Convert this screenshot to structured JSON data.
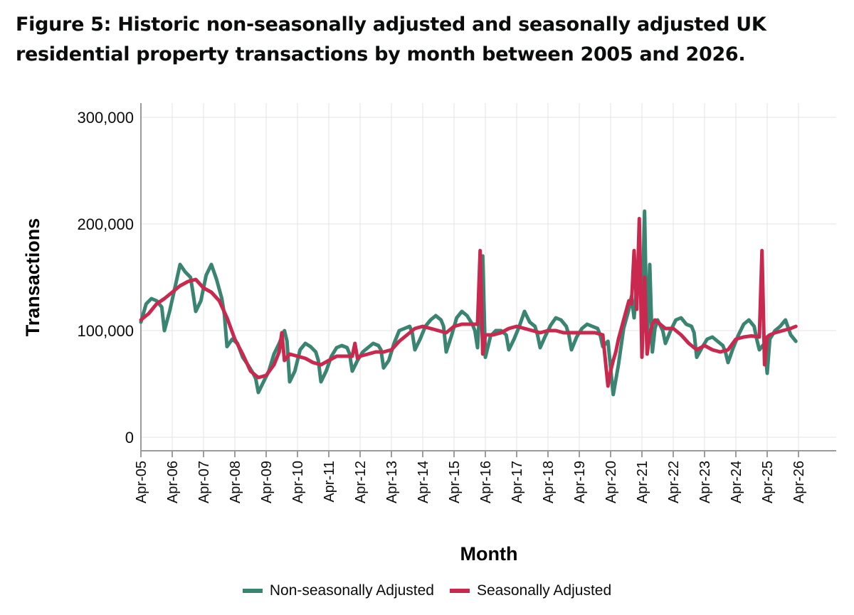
{
  "title": "Figure 5: Historic non-seasonally adjusted and seasonally adjusted UK residential property transactions by month between 2005 and 2026.",
  "chart_data": {
    "type": "line",
    "xlabel": "Month",
    "ylabel": "Transactions",
    "ylim": [
      0,
      300000
    ],
    "yticks": [
      0,
      100000,
      200000,
      300000
    ],
    "ytick_labels": [
      "0",
      "100,000",
      "200,000",
      "300,000"
    ],
    "xlim": [
      "2005-04",
      "2026-04"
    ],
    "xtick_labels": [
      "Apr-05",
      "Apr-06",
      "Apr-07",
      "Apr-08",
      "Apr-09",
      "Apr-10",
      "Apr-11",
      "Apr-12",
      "Apr-13",
      "Apr-14",
      "Apr-15",
      "Apr-16",
      "Apr-17",
      "Apr-18",
      "Apr-19",
      "Apr-20",
      "Apr-21",
      "Apr-22",
      "Apr-23",
      "Apr-24",
      "Apr-25",
      "Apr-26"
    ],
    "grid": true,
    "legend_position": "bottom",
    "colors": {
      "nsa": "#3a8472",
      "sa": "#c9294f"
    },
    "series": [
      {
        "name": "Non-seasonally Adjusted",
        "key": "nsa",
        "x": [
          "2005-04",
          "2005-06",
          "2005-08",
          "2005-10",
          "2005-12",
          "2006-01",
          "2006-03",
          "2006-05",
          "2006-07",
          "2006-09",
          "2006-11",
          "2006-12",
          "2007-01",
          "2007-03",
          "2007-05",
          "2007-07",
          "2007-09",
          "2007-11",
          "2007-12",
          "2008-01",
          "2008-03",
          "2008-05",
          "2008-07",
          "2008-09",
          "2008-11",
          "2008-12",
          "2009-01",
          "2009-03",
          "2009-05",
          "2009-07",
          "2009-09",
          "2009-11",
          "2009-12",
          "2010-01",
          "2010-03",
          "2010-05",
          "2010-07",
          "2010-09",
          "2010-11",
          "2010-12",
          "2011-01",
          "2011-03",
          "2011-05",
          "2011-07",
          "2011-09",
          "2011-11",
          "2011-12",
          "2012-01",
          "2012-03",
          "2012-05",
          "2012-07",
          "2012-09",
          "2012-11",
          "2012-12",
          "2013-01",
          "2013-03",
          "2013-05",
          "2013-07",
          "2013-09",
          "2013-11",
          "2013-12",
          "2014-01",
          "2014-03",
          "2014-05",
          "2014-07",
          "2014-09",
          "2014-11",
          "2014-12",
          "2015-01",
          "2015-03",
          "2015-05",
          "2015-07",
          "2015-09",
          "2015-11",
          "2015-12",
          "2016-01",
          "2016-03",
          "2016-04",
          "2016-06",
          "2016-08",
          "2016-10",
          "2016-12",
          "2017-01",
          "2017-03",
          "2017-05",
          "2017-07",
          "2017-09",
          "2017-11",
          "2017-12",
          "2018-01",
          "2018-03",
          "2018-05",
          "2018-07",
          "2018-09",
          "2018-11",
          "2018-12",
          "2019-01",
          "2019-03",
          "2019-05",
          "2019-07",
          "2019-09",
          "2019-11",
          "2019-12",
          "2020-01",
          "2020-03",
          "2020-05",
          "2020-07",
          "2020-09",
          "2020-11",
          "2020-12",
          "2021-01",
          "2021-03",
          "2021-04",
          "2021-05",
          "2021-06",
          "2021-07",
          "2021-08",
          "2021-09",
          "2021-10",
          "2021-12",
          "2022-01",
          "2022-03",
          "2022-05",
          "2022-07",
          "2022-09",
          "2022-11",
          "2022-12",
          "2023-01",
          "2023-03",
          "2023-05",
          "2023-07",
          "2023-09",
          "2023-11",
          "2023-12",
          "2024-01",
          "2024-03",
          "2024-05",
          "2024-07",
          "2024-09",
          "2024-11",
          "2024-12",
          "2025-01",
          "2025-03",
          "2025-04",
          "2025-05",
          "2025-07",
          "2025-09",
          "2025-11",
          "2026-01",
          "2026-03"
        ],
        "y": [
          108000,
          125000,
          130000,
          128000,
          122000,
          100000,
          118000,
          140000,
          162000,
          155000,
          150000,
          135000,
          118000,
          128000,
          152000,
          162000,
          148000,
          130000,
          115000,
          85000,
          92000,
          88000,
          75000,
          68000,
          60000,
          55000,
          42000,
          52000,
          62000,
          78000,
          88000,
          100000,
          90000,
          52000,
          62000,
          82000,
          88000,
          85000,
          80000,
          72000,
          52000,
          62000,
          76000,
          84000,
          86000,
          84000,
          78000,
          62000,
          72000,
          80000,
          84000,
          88000,
          86000,
          82000,
          65000,
          72000,
          88000,
          100000,
          102000,
          104000,
          98000,
          82000,
          92000,
          104000,
          110000,
          114000,
          110000,
          104000,
          80000,
          95000,
          112000,
          118000,
          114000,
          106000,
          100000,
          84000,
          170000,
          75000,
          95000,
          100000,
          100000,
          96000,
          82000,
          92000,
          104000,
          118000,
          108000,
          104000,
          96000,
          84000,
          95000,
          105000,
          112000,
          110000,
          104000,
          96000,
          82000,
          94000,
          102000,
          106000,
          104000,
          102000,
          96000,
          85000,
          90000,
          40000,
          68000,
          102000,
          120000,
          132000,
          112000,
          172000,
          106000,
          212000,
          84000,
          162000,
          80000,
          102000,
          110000,
          100000,
          88000,
          100000,
          110000,
          112000,
          106000,
          104000,
          98000,
          75000,
          84000,
          92000,
          94000,
          90000,
          86000,
          80000,
          70000,
          84000,
          96000,
          106000,
          110000,
          104000,
          92000,
          82000,
          88000,
          60000,
          92000,
          100000,
          104000,
          110000,
          96000,
          90000
        ]
      },
      {
        "name": "Seasonally Adjusted",
        "key": "sa",
        "x": [
          "2005-04",
          "2005-07",
          "2005-10",
          "2006-01",
          "2006-04",
          "2006-07",
          "2006-10",
          "2007-01",
          "2007-04",
          "2007-07",
          "2007-10",
          "2008-01",
          "2008-04",
          "2008-07",
          "2008-10",
          "2009-01",
          "2009-04",
          "2009-07",
          "2009-09",
          "2009-10",
          "2009-11",
          "2010-01",
          "2010-04",
          "2010-07",
          "2010-10",
          "2011-01",
          "2011-04",
          "2011-07",
          "2011-10",
          "2012-01",
          "2012-02",
          "2012-03",
          "2012-04",
          "2012-07",
          "2012-10",
          "2013-01",
          "2013-04",
          "2013-07",
          "2013-10",
          "2014-01",
          "2014-04",
          "2014-07",
          "2014-10",
          "2015-01",
          "2015-04",
          "2015-07",
          "2015-10",
          "2016-01",
          "2016-02",
          "2016-03",
          "2016-04",
          "2016-07",
          "2016-10",
          "2017-01",
          "2017-04",
          "2017-07",
          "2017-10",
          "2018-01",
          "2018-04",
          "2018-07",
          "2018-10",
          "2019-01",
          "2019-04",
          "2019-07",
          "2019-10",
          "2020-01",
          "2020-03",
          "2020-04",
          "2020-05",
          "2020-06",
          "2020-07",
          "2020-09",
          "2020-11",
          "2020-12",
          "2021-01",
          "2021-02",
          "2021-03",
          "2021-04",
          "2021-05",
          "2021-06",
          "2021-07",
          "2021-08",
          "2021-09",
          "2021-10",
          "2021-12",
          "2022-01",
          "2022-04",
          "2022-07",
          "2022-10",
          "2023-01",
          "2023-04",
          "2023-07",
          "2023-10",
          "2024-01",
          "2024-04",
          "2024-07",
          "2024-10",
          "2025-01",
          "2025-02",
          "2025-03",
          "2025-04",
          "2025-05",
          "2025-07",
          "2025-10",
          "2026-01",
          "2026-03"
        ],
        "y": [
          110000,
          116000,
          125000,
          130000,
          136000,
          142000,
          146000,
          148000,
          140000,
          136000,
          128000,
          112000,
          92000,
          78000,
          62000,
          56000,
          58000,
          68000,
          80000,
          98000,
          72000,
          78000,
          76000,
          74000,
          70000,
          68000,
          72000,
          76000,
          76000,
          76000,
          88000,
          74000,
          76000,
          78000,
          80000,
          80000,
          82000,
          90000,
          96000,
          102000,
          104000,
          102000,
          100000,
          98000,
          104000,
          106000,
          106000,
          106000,
          175000,
          78000,
          96000,
          96000,
          98000,
          102000,
          104000,
          102000,
          100000,
          98000,
          100000,
          100000,
          98000,
          98000,
          98000,
          98000,
          98000,
          96000,
          48000,
          62000,
          72000,
          80000,
          92000,
          110000,
          128000,
          125000,
          175000,
          120000,
          205000,
          75000,
          150000,
          78000,
          96000,
          106000,
          110000,
          108000,
          104000,
          102000,
          102000,
          96000,
          88000,
          82000,
          86000,
          82000,
          80000,
          82000,
          92000,
          94000,
          95000,
          94000,
          175000,
          68000,
          94000,
          96000,
          98000,
          100000,
          102000,
          104000
        ]
      }
    ]
  }
}
